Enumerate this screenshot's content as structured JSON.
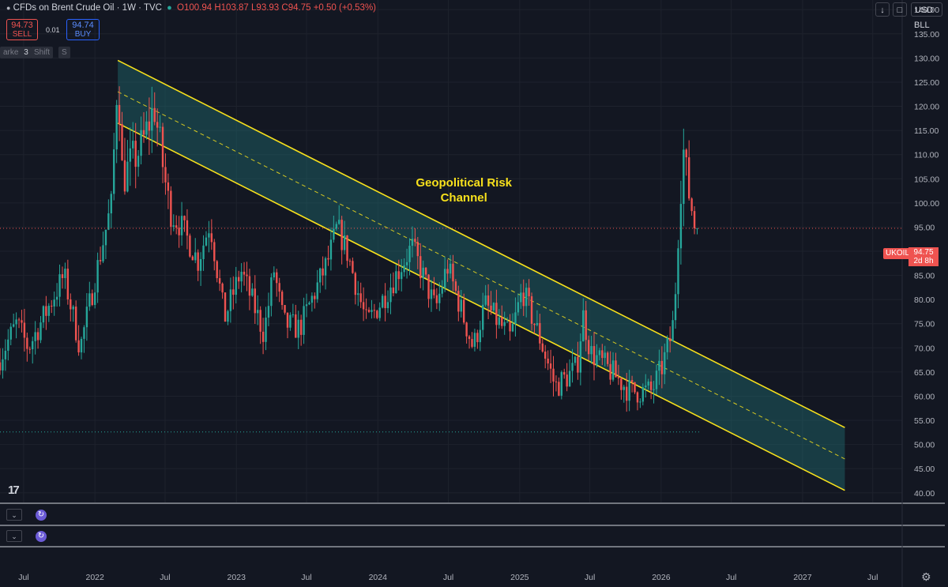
{
  "header": {
    "symbol": "CFDs on Brent Crude Oil · 1W · TVC",
    "open": "O100.94",
    "high": "H103.87",
    "low": "L93.93",
    "close": "C94.75",
    "change": "+0.50 (+0.53%)",
    "status_color": "#26a69a"
  },
  "trade": {
    "sell_price": "94.73",
    "sell_label": "SELL",
    "spread": "0.01",
    "buy_price": "94.74",
    "buy_label": "BUY"
  },
  "toolbar": {
    "pill1": "arke",
    "pill1_count": "3",
    "pill2": "Shift",
    "pill3": "S"
  },
  "right_buttons": {
    "arrow": "↓",
    "currency": "USD",
    "unit": "BLL"
  },
  "last_price": {
    "symbol": "UKOIL",
    "price": "94.75",
    "countdown": "2d 8h"
  },
  "logo": "17",
  "chart_data": {
    "type": "candlestick",
    "y_axis": {
      "range": [
        38,
        142
      ],
      "ticks": [
        40,
        45,
        50,
        55,
        60,
        65,
        70,
        75,
        80,
        85,
        90,
        95,
        100,
        105,
        110,
        115,
        120,
        125,
        130,
        135,
        140
      ]
    },
    "x_axis": {
      "range": [
        "2021-05-01",
        "2027-09-15"
      ],
      "ticks": [
        {
          "label": "Jul",
          "date": "2021-07-01"
        },
        {
          "label": "2022",
          "date": "2022-01-01"
        },
        {
          "label": "Jul",
          "date": "2022-07-01"
        },
        {
          "label": "2023",
          "date": "2023-01-01"
        },
        {
          "label": "Jul",
          "date": "2023-07-01"
        },
        {
          "label": "2024",
          "date": "2024-01-01"
        },
        {
          "label": "Jul",
          "date": "2024-07-01"
        },
        {
          "label": "2025",
          "date": "2025-01-01"
        },
        {
          "label": "Jul",
          "date": "2025-07-01"
        },
        {
          "label": "2026",
          "date": "2026-01-01"
        },
        {
          "label": "Jul",
          "date": "2026-07-01"
        },
        {
          "label": "2027",
          "date": "2027-01-01"
        },
        {
          "label": "Jul",
          "date": "2027-07-01"
        }
      ]
    },
    "up_color": "#26a69a",
    "down_color": "#ef5350",
    "path": [
      [
        "2021-05-01",
        67
      ],
      [
        "2021-06-20",
        75
      ],
      [
        "2021-07-20",
        70
      ],
      [
        "2021-09-01",
        77
      ],
      [
        "2021-10-20",
        85
      ],
      [
        "2021-12-01",
        70
      ],
      [
        "2022-01-10",
        85
      ],
      [
        "2022-02-20",
        100
      ],
      [
        "2022-03-08",
        128
      ],
      [
        "2022-03-20",
        105
      ],
      [
        "2022-04-10",
        108
      ],
      [
        "2022-05-10",
        112
      ],
      [
        "2022-06-10",
        120
      ],
      [
        "2022-07-20",
        98
      ],
      [
        "2022-08-20",
        95
      ],
      [
        "2022-10-01",
        88
      ],
      [
        "2022-11-01",
        96
      ],
      [
        "2022-12-08",
        76
      ],
      [
        "2023-01-20",
        86
      ],
      [
        "2023-03-20",
        73
      ],
      [
        "2023-04-15",
        86
      ],
      [
        "2023-05-10",
        75
      ],
      [
        "2023-06-20",
        74
      ],
      [
        "2023-09-01",
        88
      ],
      [
        "2023-09-25",
        95
      ],
      [
        "2023-10-20",
        90
      ],
      [
        "2023-12-10",
        75
      ],
      [
        "2024-01-20",
        80
      ],
      [
        "2024-04-05",
        91
      ],
      [
        "2024-06-05",
        78
      ],
      [
        "2024-07-05",
        87
      ],
      [
        "2024-09-10",
        70
      ],
      [
        "2024-10-10",
        79
      ],
      [
        "2024-12-15",
        72
      ],
      [
        "2025-01-15",
        82
      ],
      [
        "2025-03-01",
        72
      ],
      [
        "2025-04-10",
        62
      ],
      [
        "2025-05-10",
        64
      ],
      [
        "2025-06-05",
        66
      ],
      [
        "2025-06-20",
        77
      ],
      [
        "2025-07-10",
        69
      ],
      [
        "2025-08-20",
        66
      ],
      [
        "2025-10-20",
        61
      ],
      [
        "2025-12-15",
        61
      ],
      [
        "2026-01-10",
        66
      ],
      [
        "2026-02-01",
        72
      ],
      [
        "2026-02-10",
        76
      ],
      [
        "2026-03-05",
        112
      ],
      [
        "2026-03-15",
        105
      ],
      [
        "2026-04-05",
        95
      ]
    ],
    "noise_amplitude": 3.5,
    "candle_days": 7,
    "channel": {
      "upper": [
        [
          "2022-03-01",
          129.5
        ],
        [
          "2027-04-20",
          53.5
        ]
      ],
      "lower": [
        [
          "2022-03-01",
          116.5
        ],
        [
          "2027-04-20",
          40.5
        ]
      ],
      "mid": [
        [
          "2022-03-01",
          123
        ],
        [
          "2027-04-20",
          47
        ]
      ],
      "line_color": "#f7e01c",
      "fill_color": "#1f6b6e"
    },
    "annotation": {
      "line1": "Geopolitical Risk",
      "line2": "Channel",
      "date": "2024-08-10",
      "price": 104.2
    },
    "price_line": 94.75,
    "dotted_level": {
      "price": 52.6,
      "end_date": "2026-04-10"
    },
    "last_date": "2026-04-05"
  }
}
